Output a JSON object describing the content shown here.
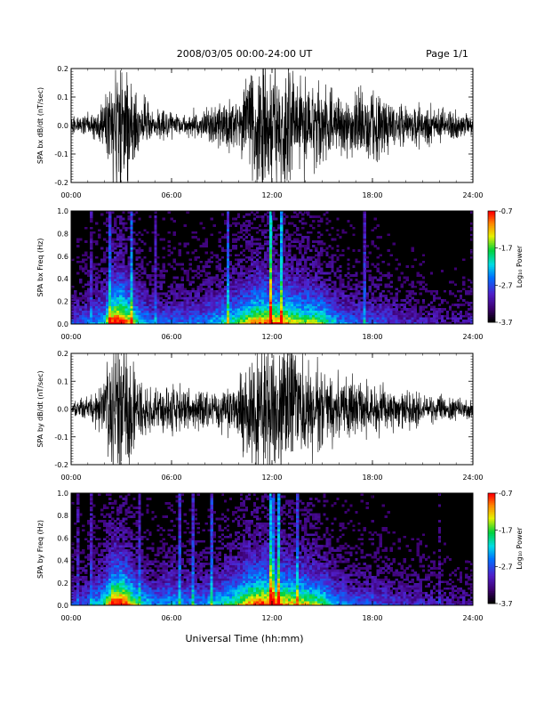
{
  "header": {
    "title": "2008/03/05  00:00-24:00 UT",
    "page": "Page 1/1"
  },
  "x_axis": {
    "label": "Universal Time (hh:mm)",
    "ticks": [
      "00:00",
      "06:00",
      "12:00",
      "18:00",
      "24:00"
    ],
    "range_hours": [
      0,
      24
    ]
  },
  "colorbar": {
    "label": "Log₁₀ Power",
    "ticks": [
      "-0.7",
      "-1.7",
      "-2.7",
      "-3.7"
    ],
    "range": [
      -3.7,
      -0.7
    ]
  },
  "chart_data": [
    {
      "type": "line",
      "ylabel": "SPA bx dB/dt (nT/sec)",
      "ylim": [
        -0.2,
        0.2
      ],
      "yticks": [
        "-0.2",
        "-0.1",
        "0.0",
        "0.1",
        "0.2"
      ],
      "x_unit": "hours UT",
      "envelope": {
        "x": [
          0,
          1,
          2,
          2.5,
          3,
          3.5,
          4,
          5,
          6,
          7,
          8,
          9,
          10,
          10.5,
          11,
          12,
          13,
          14,
          14.5,
          15,
          16,
          17,
          18,
          19,
          20,
          21,
          22,
          23,
          24
        ],
        "amplitude": [
          0.03,
          0.04,
          0.08,
          0.25,
          0.25,
          0.22,
          0.1,
          0.06,
          0.05,
          0.04,
          0.06,
          0.08,
          0.1,
          0.2,
          0.25,
          0.25,
          0.22,
          0.18,
          0.2,
          0.14,
          0.1,
          0.12,
          0.12,
          0.1,
          0.08,
          0.07,
          0.06,
          0.05,
          0.04
        ]
      }
    },
    {
      "type": "heatmap",
      "ylabel": "SPA bx Freq (Hz)",
      "ylim": [
        0,
        1.0
      ],
      "yticks": [
        "0.0",
        "0.2",
        "0.4",
        "0.6",
        "0.8",
        "1.0"
      ],
      "zlim": [
        -3.7,
        -0.7
      ],
      "activity": {
        "x": [
          0,
          1,
          2,
          2.5,
          3,
          3.5,
          4,
          5,
          6,
          7,
          8,
          9,
          10,
          10.5,
          11,
          12,
          13,
          14,
          14.5,
          15,
          16,
          17,
          18,
          19,
          20,
          21,
          22,
          23,
          24
        ],
        "level": [
          0.25,
          0.3,
          0.45,
          0.85,
          0.9,
          0.7,
          0.45,
          0.3,
          0.3,
          0.3,
          0.35,
          0.45,
          0.55,
          0.65,
          0.75,
          0.75,
          0.7,
          0.6,
          0.6,
          0.55,
          0.35,
          0.3,
          0.3,
          0.25,
          0.2,
          0.2,
          0.15,
          0.15,
          0.15
        ]
      }
    },
    {
      "type": "line",
      "ylabel": "SPA by dB/dt (nT/sec)",
      "ylim": [
        -0.2,
        0.2
      ],
      "yticks": [
        "-0.2",
        "-0.1",
        "0.0",
        "0.1",
        "0.2"
      ],
      "x_unit": "hours UT",
      "envelope": {
        "x": [
          0,
          1,
          2,
          2.5,
          3,
          3.5,
          4,
          5,
          6,
          7,
          8,
          9,
          10,
          10.5,
          11,
          12,
          13,
          14,
          14.5,
          15,
          16,
          17,
          18,
          19,
          20,
          21,
          22,
          23,
          24
        ],
        "amplitude": [
          0.03,
          0.04,
          0.1,
          0.25,
          0.25,
          0.22,
          0.12,
          0.08,
          0.1,
          0.08,
          0.07,
          0.08,
          0.1,
          0.25,
          0.25,
          0.25,
          0.22,
          0.2,
          0.18,
          0.15,
          0.12,
          0.12,
          0.1,
          0.08,
          0.07,
          0.06,
          0.05,
          0.04,
          0.04
        ]
      }
    },
    {
      "type": "heatmap",
      "ylabel": "SPA by Freq (Hz)",
      "ylim": [
        0,
        1.0
      ],
      "yticks": [
        "0.0",
        "0.2",
        "0.4",
        "0.6",
        "0.8",
        "1.0"
      ],
      "zlim": [
        -3.7,
        -0.7
      ],
      "activity": {
        "x": [
          0,
          1,
          2,
          2.5,
          3,
          3.5,
          4,
          5,
          6,
          7,
          8,
          9,
          10,
          10.5,
          11,
          12,
          13,
          14,
          14.5,
          15,
          16,
          17,
          18,
          19,
          20,
          21,
          22,
          23,
          24
        ],
        "level": [
          0.25,
          0.3,
          0.5,
          0.85,
          0.9,
          0.7,
          0.5,
          0.35,
          0.4,
          0.35,
          0.35,
          0.45,
          0.6,
          0.7,
          0.8,
          0.8,
          0.7,
          0.65,
          0.6,
          0.55,
          0.35,
          0.3,
          0.3,
          0.25,
          0.2,
          0.2,
          0.18,
          0.15,
          0.15
        ]
      }
    }
  ]
}
